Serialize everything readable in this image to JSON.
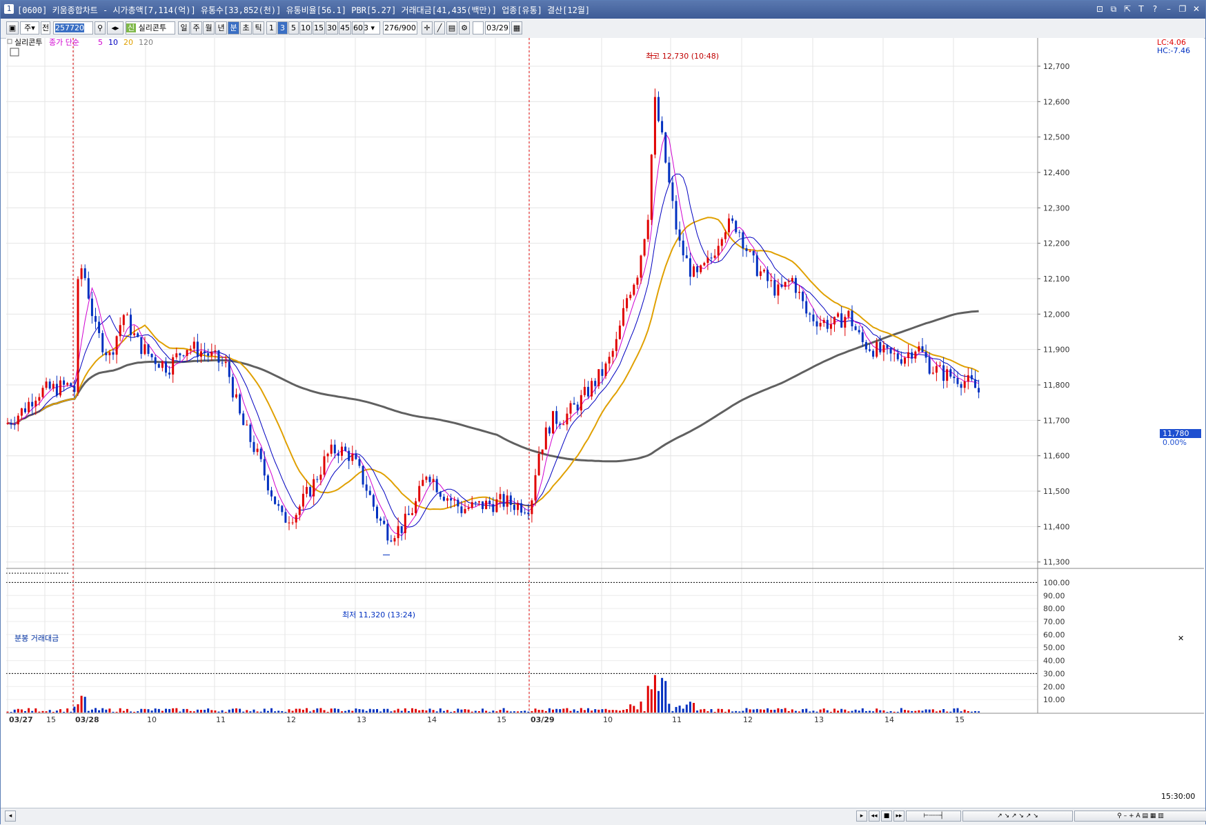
{
  "window": {
    "number": "1",
    "title": "[0600] 키움종합차트 - 시가총액[7,114(억)] 유통수[33,852(천)] 유통비율[56.1] PBR[5.27] 거래대금[41,435(백만)] 업종[유통] 결산[12월]"
  },
  "toolbar": {
    "mode": "주",
    "range": "전",
    "code": "257720",
    "stock_name": "실리콘투",
    "period_buttons": [
      "일",
      "주",
      "월",
      "년",
      "분",
      "초",
      "틱"
    ],
    "active_period": "분",
    "minute_buttons": [
      "1",
      "3",
      "5",
      "10",
      "15",
      "30",
      "45",
      "60"
    ],
    "active_minute": "3",
    "custom_minute": "3",
    "count": "276/900",
    "date": "03/29"
  },
  "price_pane": {
    "stock_label": "실리콘투",
    "indicator_label": "종가 단순",
    "ma_periods": [
      "5",
      "10",
      "20",
      "120"
    ],
    "ma_colors": [
      "#d000d0",
      "#0000c0",
      "#e0a000",
      "#606060"
    ],
    "lc_label": "LC:4.06",
    "hc_label": "HC:-7.46",
    "y_ticks": [
      "12,700",
      "12,600",
      "12,500",
      "12,400",
      "12,300",
      "12,200",
      "12,100",
      "12,000",
      "11,900",
      "11,800",
      "11,700",
      "11,600",
      "11,500",
      "11,400",
      "11,300"
    ],
    "current_price": "11,780",
    "current_pct": "0.00%",
    "high_label": "최고 12,730 (10:48)",
    "low_label": "최저 11,320 (13:24)"
  },
  "volume_pane": {
    "label": "분봉 거래대금",
    "y_ticks": [
      "100.00",
      "90.00",
      "80.00",
      "70.00",
      "60.00",
      "50.00",
      "40.00",
      "30.00",
      "20.00",
      "10.00"
    ]
  },
  "x_axis": {
    "labels": [
      "03/27",
      "15",
      "03/28",
      "10",
      "11",
      "12",
      "13",
      "14",
      "15",
      "03/29",
      "10",
      "11",
      "12",
      "13",
      "14",
      "15"
    ],
    "end_time": "15:30:00"
  },
  "chart_data": {
    "type": "candlestick",
    "symbol": "실리콘투",
    "interval": "3분",
    "ylim": [
      11280,
      12770
    ],
    "high": {
      "value": 12730,
      "time": "10:48"
    },
    "low": {
      "value": 11320,
      "time": "13:24"
    },
    "last": 11780,
    "ma_periods": [
      5,
      10,
      20,
      120
    ]
  },
  "colors": {
    "up": "#e00000",
    "down": "#0030c0",
    "ma5": "#d000d0",
    "ma10": "#0000c0",
    "ma20": "#e0a000",
    "ma120": "#606060"
  }
}
